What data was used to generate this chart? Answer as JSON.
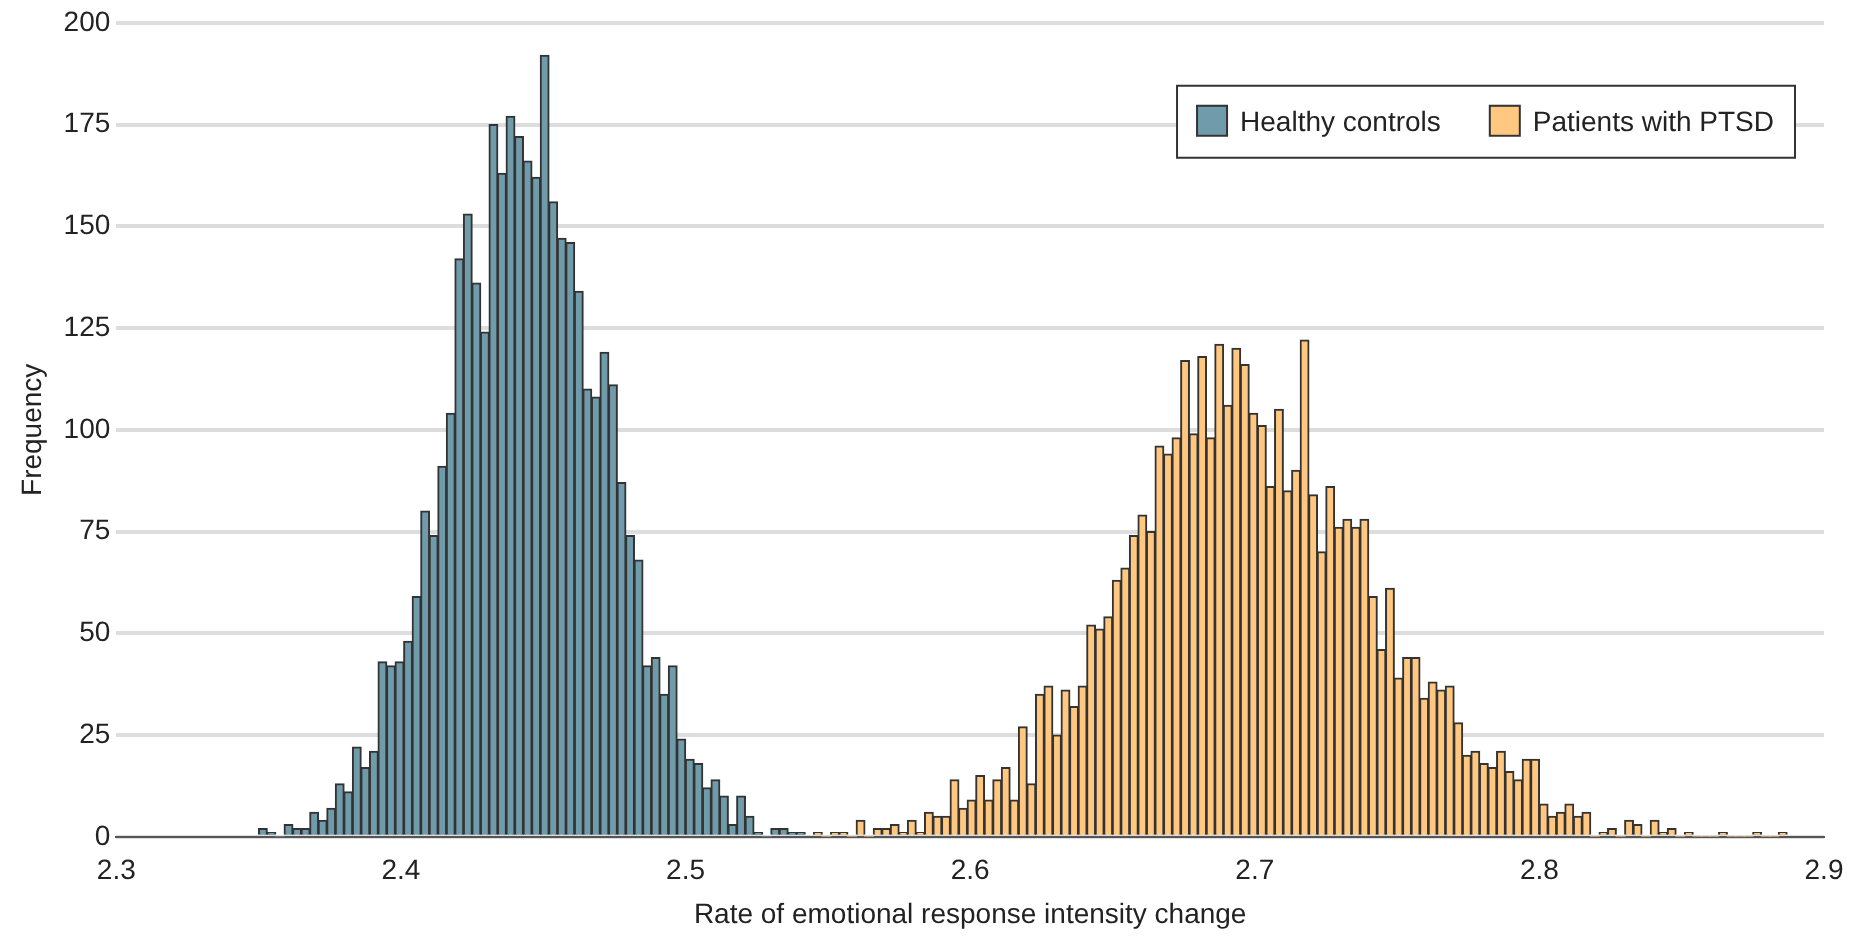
{
  "chart_data": {
    "type": "histogram",
    "xlabel": "Rate of emotional response intensity change",
    "ylabel": "Frequency",
    "xlim": [
      2.3,
      2.9
    ],
    "xticks": [
      2.3,
      2.4,
      2.5,
      2.6,
      2.7,
      2.8,
      2.9
    ],
    "ylim": [
      0,
      200
    ],
    "yticks": [
      0,
      25,
      50,
      75,
      100,
      125,
      150,
      175,
      200
    ],
    "grid": "y",
    "legend": "top right",
    "bins": [
      2.35,
      2.353,
      2.356,
      2.359,
      2.362,
      2.365,
      2.368,
      2.371,
      2.374,
      2.377,
      2.38,
      2.383,
      2.386,
      2.389,
      2.392,
      2.395,
      2.398,
      2.401,
      2.404,
      2.407,
      2.41,
      2.413,
      2.416,
      2.419,
      2.422,
      2.425,
      2.428,
      2.431,
      2.434,
      2.437,
      2.44,
      2.443,
      2.446,
      2.449,
      2.452,
      2.455,
      2.458,
      2.461,
      2.464,
      2.467,
      2.47,
      2.473,
      2.476,
      2.479,
      2.482,
      2.485,
      2.488,
      2.491,
      2.494,
      2.497,
      2.5,
      2.503,
      2.506,
      2.509,
      2.512,
      2.515,
      2.518,
      2.521,
      2.524,
      2.527,
      2.53,
      2.533,
      2.536,
      2.539,
      2.542,
      2.545,
      2.548,
      2.551,
      2.554,
      2.557,
      2.56,
      2.563,
      2.566,
      2.569,
      2.572,
      2.575,
      2.578,
      2.581,
      2.584,
      2.587,
      2.59,
      2.593,
      2.596,
      2.599,
      2.602,
      2.605,
      2.608,
      2.611,
      2.614,
      2.617,
      2.62,
      2.623,
      2.626,
      2.629,
      2.632,
      2.635,
      2.638,
      2.641,
      2.644,
      2.647,
      2.65,
      2.653,
      2.656,
      2.659,
      2.662,
      2.665,
      2.668,
      2.671,
      2.674,
      2.677,
      2.68,
      2.683,
      2.686,
      2.689,
      2.692,
      2.695,
      2.698,
      2.701,
      2.704,
      2.707,
      2.71,
      2.713,
      2.716,
      2.719,
      2.722,
      2.725,
      2.728,
      2.731,
      2.734,
      2.737,
      2.74,
      2.743,
      2.746,
      2.749,
      2.752,
      2.755,
      2.758,
      2.761,
      2.764,
      2.767,
      2.77,
      2.773,
      2.776,
      2.779,
      2.782,
      2.785,
      2.788,
      2.791,
      2.794,
      2.797,
      2.8,
      2.803,
      2.806,
      2.809,
      2.812,
      2.815,
      2.818,
      2.821,
      2.824,
      2.827,
      2.83,
      2.833,
      2.836,
      2.839,
      2.842,
      2.845,
      2.848,
      2.851,
      2.854,
      2.857,
      2.86,
      2.863,
      2.866,
      2.869,
      2.872,
      2.875,
      2.878,
      2.881,
      2.884,
      2.887
    ],
    "series": [
      {
        "name": "Healthy controls",
        "color": "#6f9bab",
        "values": [
          2,
          1,
          0,
          3,
          2,
          2,
          6,
          4,
          7,
          13,
          11,
          22,
          17,
          21,
          43,
          42,
          43,
          48,
          59,
          80,
          74,
          91,
          104,
          142,
          153,
          136,
          124,
          175,
          163,
          177,
          172,
          166,
          162,
          192,
          156,
          147,
          146,
          134,
          110,
          108,
          119,
          111,
          87,
          74,
          68,
          42,
          44,
          35,
          42,
          24,
          19,
          18,
          12,
          14,
          10,
          3,
          10,
          5,
          1,
          0,
          2,
          2,
          1,
          1,
          null,
          null,
          null,
          null,
          null,
          null,
          null,
          null,
          null,
          null,
          null,
          null,
          null,
          null,
          null,
          null,
          null,
          null,
          null,
          null,
          null,
          null,
          null,
          null,
          null,
          null,
          null,
          null,
          null,
          null,
          null,
          null,
          null,
          null,
          null,
          null,
          null,
          null,
          null,
          null,
          null,
          null,
          null,
          null,
          null,
          null,
          null,
          null,
          null,
          null,
          null,
          null,
          null,
          null,
          null,
          null,
          null,
          null,
          null,
          null,
          null,
          null,
          null,
          null,
          null,
          null,
          null,
          null,
          null,
          null,
          null,
          null,
          null,
          null,
          null,
          null,
          null,
          null,
          null,
          null,
          null,
          null,
          null,
          null,
          null,
          null,
          null,
          null,
          null,
          null,
          null,
          null,
          null,
          null,
          null,
          null,
          null,
          null,
          null,
          null,
          null,
          null,
          null,
          null,
          null,
          null,
          null,
          null,
          null,
          null,
          null,
          null,
          null,
          null,
          null
        ]
      },
      {
        "name": "Patients with PTSD",
        "color": "#ffc77f",
        "values": [
          null,
          null,
          null,
          null,
          null,
          null,
          null,
          null,
          null,
          null,
          null,
          null,
          null,
          null,
          null,
          null,
          null,
          null,
          null,
          null,
          null,
          null,
          null,
          null,
          null,
          null,
          null,
          null,
          null,
          null,
          null,
          null,
          null,
          null,
          null,
          null,
          null,
          null,
          null,
          null,
          null,
          null,
          null,
          null,
          null,
          null,
          null,
          null,
          null,
          null,
          null,
          null,
          null,
          null,
          null,
          null,
          null,
          null,
          null,
          null,
          null,
          null,
          null,
          null,
          null,
          1,
          0,
          1,
          1,
          0,
          4,
          0,
          2,
          2,
          3,
          1,
          4,
          1,
          6,
          5,
          5,
          14,
          7,
          9,
          15,
          9,
          14,
          17,
          9,
          27,
          13,
          35,
          37,
          25,
          36,
          32,
          37,
          52,
          51,
          54,
          63,
          66,
          74,
          79,
          75,
          96,
          94,
          98,
          117,
          99,
          118,
          98,
          121,
          106,
          120,
          116,
          104,
          101,
          86,
          105,
          85,
          90,
          122,
          84,
          70,
          86,
          76,
          78,
          76,
          78,
          59,
          46,
          61,
          39,
          44,
          44,
          34,
          38,
          36,
          37,
          28,
          20,
          21,
          18,
          17,
          21,
          16,
          14,
          19,
          19,
          8,
          5,
          6,
          8,
          5,
          6,
          0,
          1,
          2,
          0,
          4,
          3,
          0,
          4,
          1,
          2,
          0,
          1,
          0,
          0,
          0,
          1,
          0,
          0,
          0,
          1,
          0,
          0,
          1
        ]
      }
    ]
  }
}
